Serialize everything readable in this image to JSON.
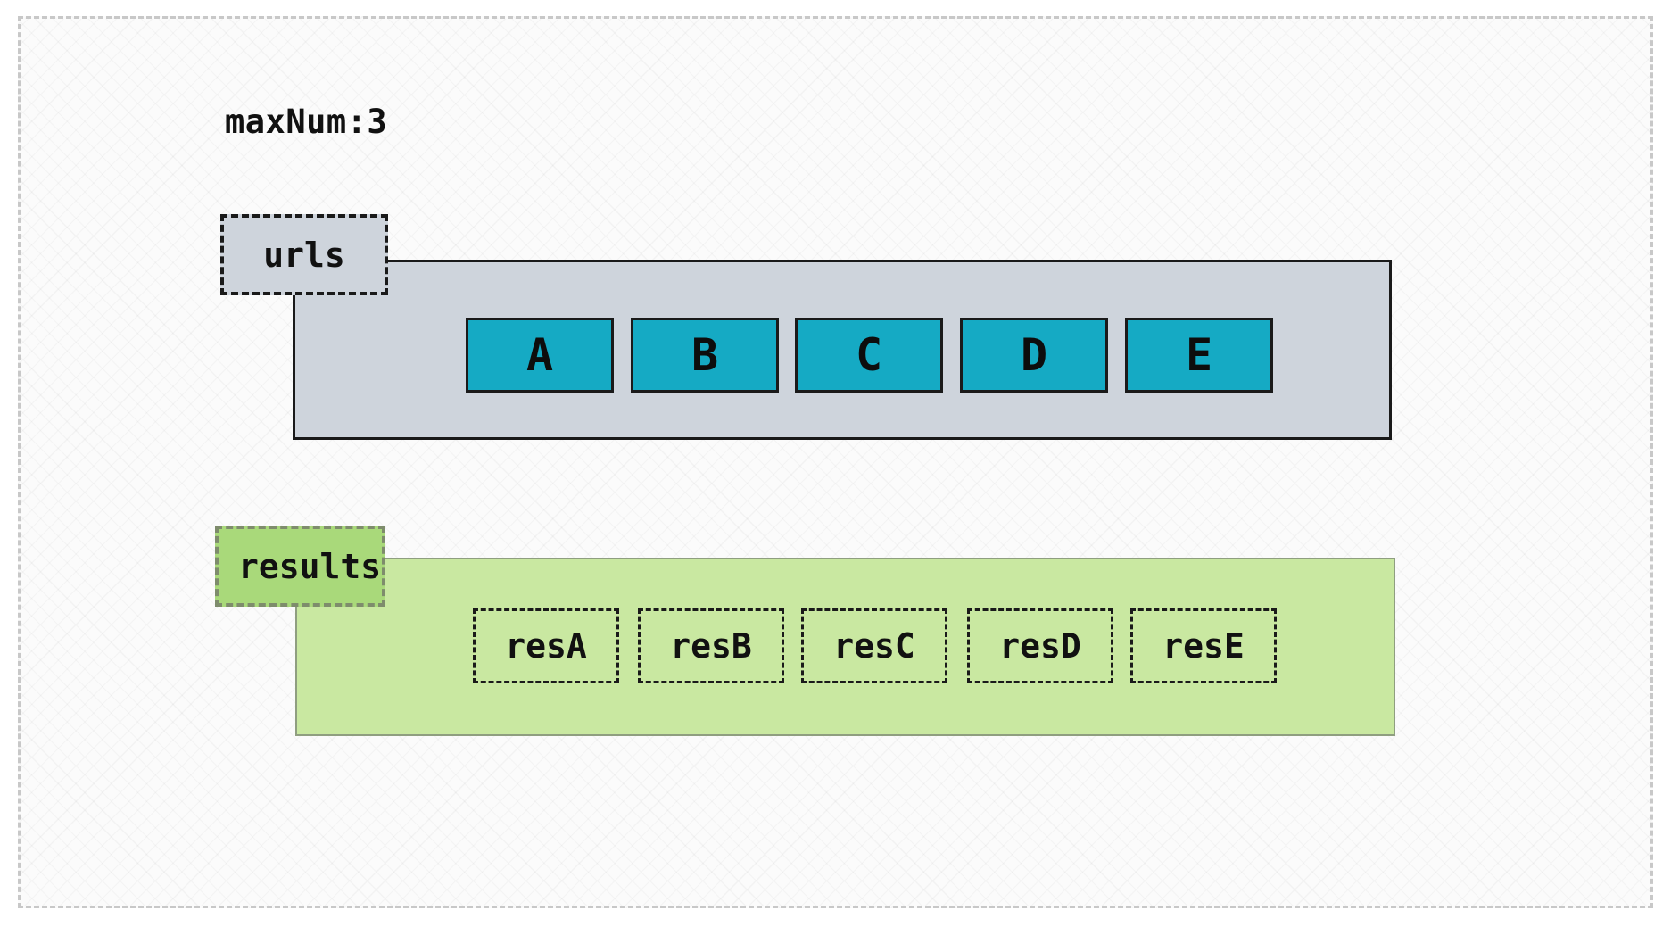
{
  "title": "maxNum:3",
  "urls": {
    "label": "urls",
    "items": [
      "A",
      "B",
      "C",
      "D",
      "E"
    ]
  },
  "results": {
    "label": "results",
    "items": [
      "resA",
      "resB",
      "resC",
      "resD",
      "resE"
    ]
  },
  "colors": {
    "urls_panel": "#ced4dc",
    "url_item": "#15aac4",
    "results_panel": "#c9e8a1",
    "results_tag": "#a9d97a"
  }
}
